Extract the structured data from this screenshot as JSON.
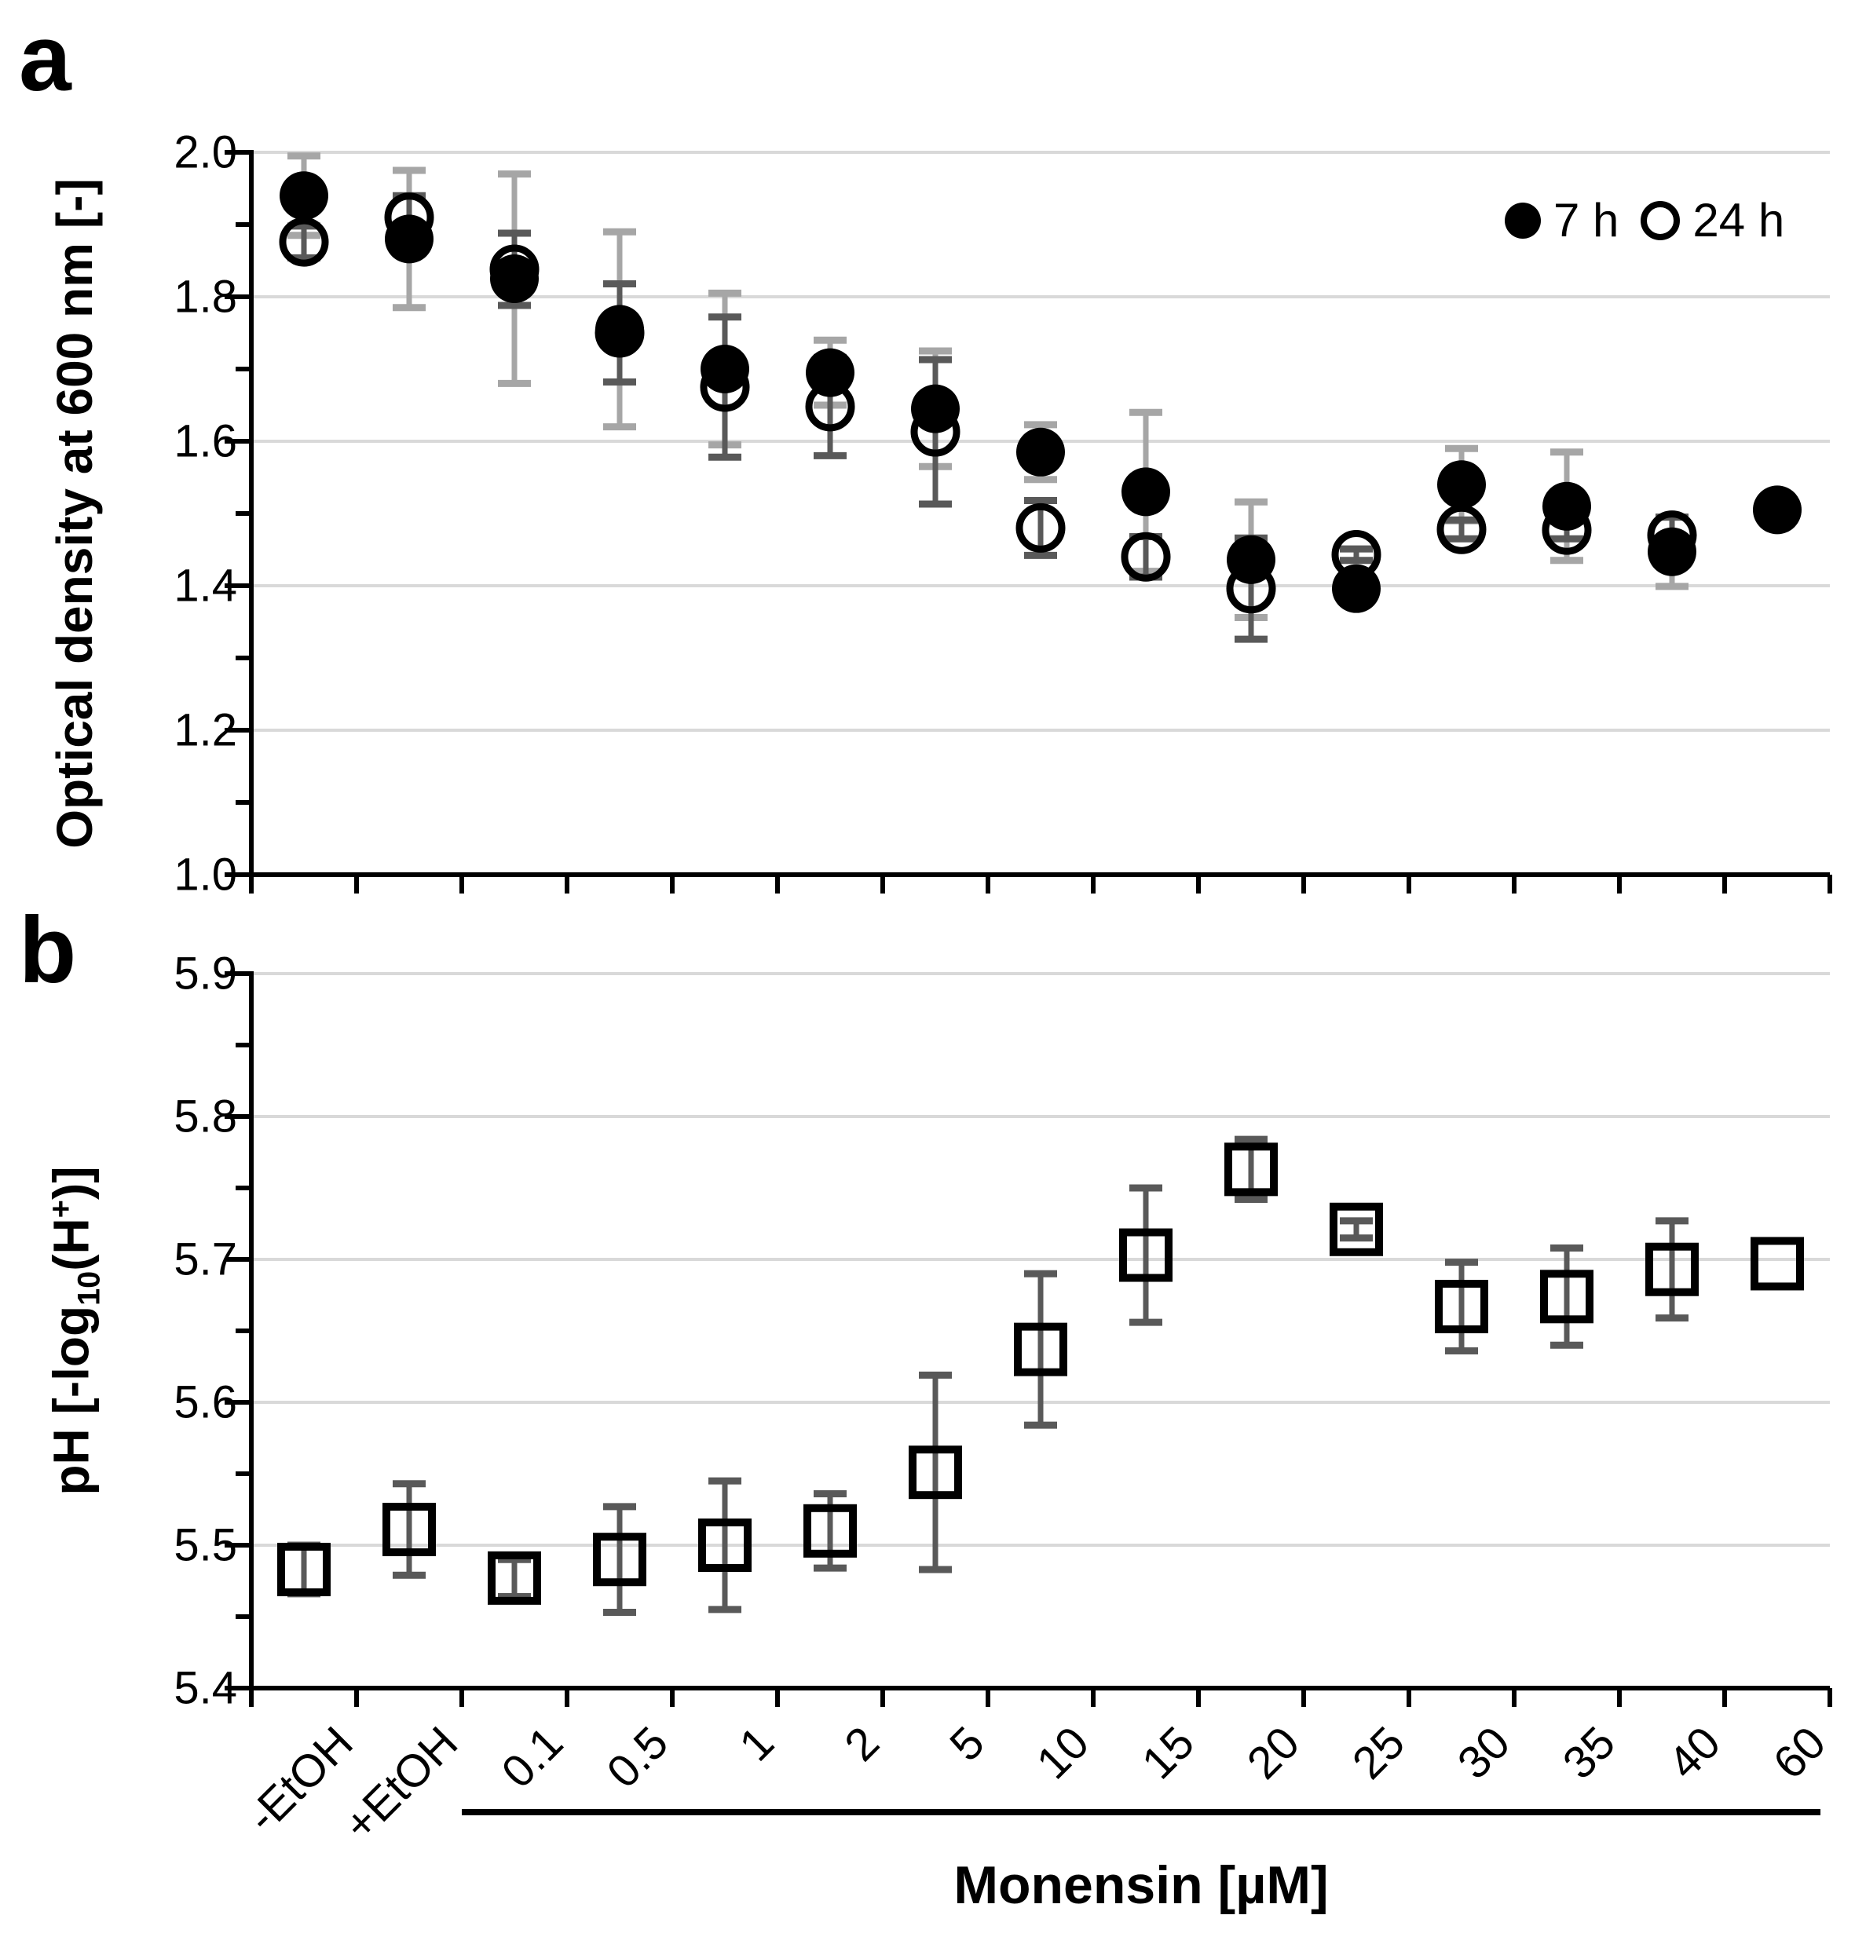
{
  "figure": {
    "panel_a_letter": "a",
    "panel_b_letter": "b",
    "x_axis_title": "Monensin [µM]",
    "legend": {
      "series1_label": "7 h",
      "series2_label": "24 h"
    }
  },
  "colors": {
    "axis": "#000000",
    "gridline": "#d9d9d9",
    "error_7h": "#a6a6a6",
    "error_24h": "#595959",
    "error_ph": "#595959",
    "marker": "#000000",
    "background": "#ffffff"
  },
  "chart_data": [
    {
      "type": "scatter",
      "panel": "a",
      "title": "",
      "xlabel": "",
      "ylabel": "Optical density at 600 nm [-]",
      "ylim": [
        1.0,
        2.0
      ],
      "yticks": [
        "2.0",
        "1.8",
        "1.6",
        "1.4",
        "1.2",
        "1.0"
      ],
      "ytick_values": [
        2.0,
        1.8,
        1.6,
        1.4,
        1.2,
        1.0
      ],
      "yminor_values": [
        1.9,
        1.7,
        1.5,
        1.3,
        1.1
      ],
      "grid": "horizontal-major",
      "legend_position": "top-right-inside",
      "categories": [
        "-EtOH",
        "+EtOH",
        "0.1",
        "0.5",
        "1",
        "2",
        "5",
        "10",
        "15",
        "20",
        "25",
        "30",
        "35",
        "40",
        "60"
      ],
      "series": [
        {
          "name": "7 h",
          "marker": "filled-circle",
          "values": [
            1.94,
            1.88,
            1.825,
            1.755,
            1.7,
            1.695,
            1.645,
            1.585,
            1.53,
            1.436,
            1.396,
            1.54,
            1.51,
            1.447,
            1.505
          ],
          "errors": [
            0.055,
            0.095,
            0.145,
            0.135,
            0.105,
            0.045,
            0.08,
            0.038,
            0.11,
            0.08,
            null,
            0.05,
            0.075,
            0.048,
            null
          ]
        },
        {
          "name": "24 h",
          "marker": "open-circle",
          "values": [
            1.876,
            1.91,
            1.838,
            1.75,
            1.675,
            1.648,
            1.613,
            1.48,
            1.44,
            1.396,
            1.443,
            1.478,
            1.477,
            1.47,
            null
          ],
          "errors": [
            0.022,
            0.03,
            0.05,
            0.068,
            0.097,
            0.068,
            0.1,
            0.038,
            0.028,
            0.07,
            0.008,
            0.013,
            0.012,
            0.025,
            null
          ]
        }
      ]
    },
    {
      "type": "scatter",
      "panel": "b",
      "title": "",
      "xlabel": "Monensin [µM]",
      "ylabel": "pH [-log10(H+)]",
      "ylabel_parts": {
        "prefix": "pH [-log",
        "sub": "10",
        "mid": "(H",
        "sup": "+",
        "suffix": ")]"
      },
      "ylim": [
        5.4,
        5.9
      ],
      "yticks": [
        "5.9",
        "5.8",
        "5.7",
        "5.6",
        "5.5",
        "5.4"
      ],
      "ytick_values": [
        5.9,
        5.8,
        5.7,
        5.6,
        5.5,
        5.4
      ],
      "yminor_values": [
        5.85,
        5.75,
        5.65,
        5.55,
        5.45
      ],
      "grid": "horizontal-major",
      "legend_position": "none",
      "categories": [
        "-EtOH",
        "+EtOH",
        "0.1",
        "0.5",
        "1",
        "2",
        "5",
        "10",
        "15",
        "20",
        "25",
        "30",
        "35",
        "40",
        "60"
      ],
      "series": [
        {
          "name": "pH",
          "marker": "open-square",
          "values": [
            5.483,
            5.511,
            5.477,
            5.49,
            5.5,
            5.51,
            5.551,
            5.637,
            5.703,
            5.763,
            5.721,
            5.667,
            5.674,
            5.693,
            5.697
          ],
          "errors": [
            0.017,
            0.032,
            0.013,
            0.037,
            0.045,
            0.026,
            0.068,
            0.053,
            0.047,
            0.021,
            0.006,
            0.031,
            0.034,
            0.034,
            null
          ]
        }
      ]
    }
  ]
}
